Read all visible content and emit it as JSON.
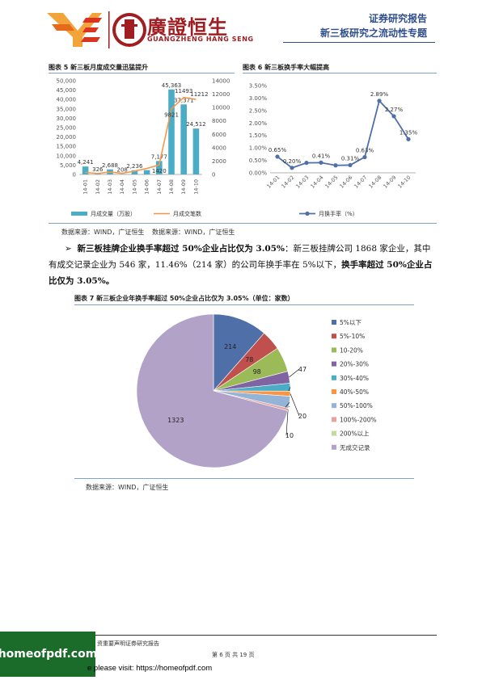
{
  "header": {
    "brand_cn": "廣證恒生",
    "brand_en": "GUANGZHENG HANG SENG",
    "report_type": "证券研究报告",
    "report_title": "新三板研究之流动性专题"
  },
  "fig5": {
    "caption": "图表 5 新三板月度成交量迅猛提升",
    "source": "数据来源：WIND，广证恒生"
  },
  "fig6": {
    "caption": "图表 6 新三板换手率大幅提高",
    "source": "数据来源：WIND，广证恒生"
  },
  "body": {
    "bullet": "➢",
    "p1_bold": "新三板挂牌企业换手率超过 50%企业占比仅为 3.05%",
    "p1_sep": "：",
    "p1_normal": "新三板挂牌公司 1868 家企业，其中有成交记录企业为 546 家，11.46%（214 家）的公司年换手率在 5%以下，",
    "p1_bold2": "换手率超过 50%企业占比仅为 3.05%。"
  },
  "fig7": {
    "caption": "图表 7 新三板企业年换手率超过 50%企业占比仅为 3.05%（单位：家数）",
    "source": "数据来源：WIND，广证恒生"
  },
  "footer": {
    "disclaimer": "资重要声明证券研究报告",
    "page": "第 6 页 共 19 页"
  },
  "watermark": {
    "logo": "homeofpdf.com",
    "text": "e please visit: https://homeofpdf.com"
  },
  "chart_data": [
    {
      "type": "bar",
      "categories": [
        "14-01",
        "14-02",
        "14-03",
        "14-04",
        "14-05",
        "14-06",
        "14-07",
        "14-08",
        "14-09",
        "14-10"
      ],
      "series": [
        {
          "name": "月成交量（万股）",
          "type": "bar",
          "axis": "left",
          "color": "#4bacc6",
          "values": [
            4241,
            326,
            2688,
            208,
            2236,
            2300,
            7177,
            45363,
            37371,
            24512
          ],
          "labels": [
            "4,241",
            "326",
            "2,688",
            "208",
            "2,236",
            "",
            "7,177",
            "45,363",
            "37,371",
            "24,512"
          ]
        },
        {
          "name": "月成交笔数",
          "type": "line",
          "axis": "right",
          "color": "#f79646",
          "values": [
            300,
            150,
            350,
            180,
            500,
            900,
            1420,
            9821,
            11493,
            11212
          ],
          "labels": [
            "",
            "",
            "",
            "",
            "",
            "",
            "1420",
            "9821",
            "11493",
            "11212"
          ]
        }
      ],
      "ylim_left": [
        0,
        50000
      ],
      "yticks_left": [
        "0",
        "5,000",
        "10,000",
        "15,000",
        "20,000",
        "25,000",
        "30,000",
        "35,000",
        "40,000",
        "45,000",
        "50,000"
      ],
      "ylim_right": [
        0,
        14000
      ],
      "yticks_right": [
        "0",
        "2000",
        "4000",
        "6000",
        "8000",
        "10000",
        "12000",
        "14000"
      ],
      "legend": "bottom"
    },
    {
      "type": "line",
      "categories": [
        "14-01",
        "14-02",
        "14-03",
        "14-04",
        "14-05",
        "14-06",
        "14-07",
        "14-08",
        "14-09",
        "14-10"
      ],
      "series": [
        {
          "name": "月换手率（%）",
          "color": "#4f6fa8",
          "values": [
            0.65,
            0.2,
            0.4,
            0.41,
            0.3,
            0.31,
            0.63,
            2.89,
            2.27,
            1.35
          ],
          "labels": [
            "0.65%",
            "0.20%",
            "",
            "0.41%",
            "",
            "0.31%",
            "0.63%",
            "2.89%",
            "2.27%",
            "1.35%"
          ]
        }
      ],
      "ylim": [
        0,
        3.5
      ],
      "yticks": [
        "0.00%",
        "0.50%",
        "1.00%",
        "1.50%",
        "2.00%",
        "2.50%",
        "3.00%",
        "3.50%"
      ],
      "legend": "bottom"
    },
    {
      "type": "pie",
      "categories": [
        "5%以下",
        "5%-10%",
        "10-20%",
        "20%-30%",
        "30%-40%",
        "40%-50%",
        "50%-100%",
        "100%-200%",
        "200%以上",
        "无成交记录"
      ],
      "values": [
        214,
        78,
        98,
        47,
        31,
        20,
        47,
        10,
        0,
        1323
      ],
      "colors": [
        "#4f6fa8",
        "#c0504d",
        "#9bbb59",
        "#8064a2",
        "#4bacc6",
        "#f79646",
        "#95b3d7",
        "#e6a1a0",
        "#c6d9a0",
        "#b2a2c7"
      ],
      "legend": "right"
    }
  ]
}
